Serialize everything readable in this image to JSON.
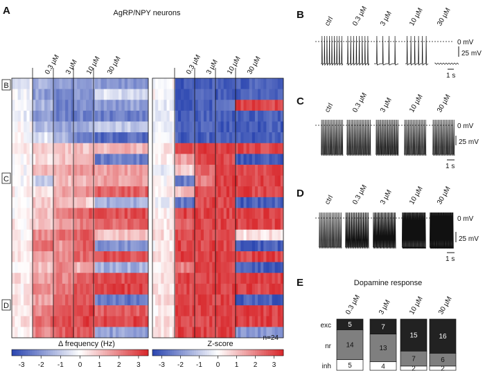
{
  "figure": {
    "panel_A": {
      "letter": "A",
      "title": "AgRP/NPY neurons",
      "row_markers": [
        "B",
        "C",
        "D"
      ],
      "concentration_labels": [
        "0.3 µM",
        "3 µM",
        "10 µM",
        "30 µM"
      ],
      "left_colorbar_label": "Δ frequency (Hz)",
      "right_colorbar_label": "Z-score",
      "colorbar_ticks": [
        "-3",
        "-2",
        "-1",
        "0",
        "1",
        "2",
        "3"
      ],
      "n_label": "n=24",
      "colors": {
        "low": "#2a45b0",
        "mid": "#ffffff",
        "high": "#d8262a"
      }
    },
    "panel_traces": [
      {
        "letter": "B",
        "labels": [
          "ctrl",
          "0.3 µM",
          "3 µM",
          "10 µM",
          "30 µM"
        ],
        "mv0": "0 mV",
        "mv25": "25 mV",
        "t1": "1 s"
      },
      {
        "letter": "C",
        "labels": [
          "ctrl",
          "0.3 µM",
          "3 µM",
          "10 µM",
          "30 µM"
        ],
        "mv0": "0 mV",
        "mv25": "25 mV",
        "t1": "1 s"
      },
      {
        "letter": "D",
        "labels": [
          "ctrl",
          "0.3 µM",
          "3 µM",
          "10 µM",
          "30 µM"
        ],
        "mv0": "0 mV",
        "mv25": "25 mV",
        "t1": "1 s"
      }
    ],
    "panel_E": {
      "letter": "E",
      "title": "Dopamine response",
      "row_labels": [
        "exc",
        "nr",
        "inh"
      ]
    }
  },
  "chart_data": [
    {
      "type": "heatmap",
      "title": "AgRP/NPY neurons",
      "xlabel": "",
      "ylabel": "",
      "colorbar_label": "Δ frequency (Hz)",
      "colorbar_range": [
        -3.5,
        3.5
      ],
      "columns": [
        "ctrl",
        "0.3 µM",
        "3 µM",
        "10 µM",
        "30 µM"
      ],
      "row_values": [
        [
          -0.3,
          -1.5,
          -2.0,
          -1.8,
          -2.0
        ],
        [
          -0.2,
          -1.8,
          -2.2,
          -2.0,
          -0.6
        ],
        [
          0.0,
          -1.5,
          -2.5,
          -2.2,
          -1.8
        ],
        [
          -0.3,
          -2.0,
          -2.4,
          -2.3,
          -2.5
        ],
        [
          0.0,
          -1.2,
          -1.8,
          -1.5,
          -1.0
        ],
        [
          0.0,
          -0.5,
          -1.5,
          -2.2,
          -2.8
        ],
        [
          0.2,
          0.8,
          0.9,
          1.0,
          1.2
        ],
        [
          0.1,
          0.6,
          1.0,
          1.4,
          -2.5
        ],
        [
          0.0,
          1.0,
          1.5,
          1.8,
          1.5
        ],
        [
          0.0,
          -0.8,
          1.0,
          1.2,
          1.5
        ],
        [
          0.2,
          0.5,
          1.4,
          2.0,
          2.5
        ],
        [
          -0.2,
          0.8,
          1.2,
          0.8,
          -1.5
        ],
        [
          0.0,
          1.0,
          2.0,
          2.6,
          2.8
        ],
        [
          0.3,
          0.9,
          1.5,
          2.0,
          2.4
        ],
        [
          0.2,
          1.8,
          2.2,
          2.6,
          1.0
        ],
        [
          0.4,
          2.2,
          1.5,
          2.6,
          -2.0
        ],
        [
          0.3,
          1.5,
          2.0,
          2.4,
          2.8
        ],
        [
          0.1,
          1.0,
          2.0,
          1.2,
          -1.5
        ],
        [
          0.5,
          1.5,
          2.0,
          2.5,
          2.8
        ],
        [
          0.3,
          1.8,
          2.2,
          2.8,
          3.0
        ],
        [
          0.4,
          1.5,
          2.4,
          2.8,
          -2.5
        ],
        [
          0.2,
          2.0,
          2.5,
          3.0,
          2.6
        ],
        [
          0.5,
          2.5,
          2.8,
          3.0,
          3.0
        ],
        [
          0.3,
          2.0,
          2.6,
          2.5,
          -1.8
        ]
      ]
    },
    {
      "type": "heatmap",
      "title": "",
      "xlabel": "",
      "ylabel": "",
      "colorbar_label": "Z-score",
      "colorbar_range": [
        -3.5,
        3.5
      ],
      "columns": [
        "ctrl",
        "0.3 µM",
        "3 µM",
        "10 µM",
        "30 µM"
      ],
      "row_values": [
        [
          0.0,
          -3.0,
          -3.0,
          -3.0,
          -3.0
        ],
        [
          0.0,
          -3.0,
          -3.0,
          -3.0,
          -3.0
        ],
        [
          -0.3,
          -3.0,
          -3.0,
          -2.5,
          3.0
        ],
        [
          -0.3,
          -3.0,
          -3.0,
          -3.0,
          -3.0
        ],
        [
          -0.2,
          -3.0,
          -3.0,
          -3.0,
          -3.0
        ],
        [
          0.0,
          -3.0,
          -3.0,
          -3.0,
          -3.0
        ],
        [
          0.5,
          3.0,
          3.0,
          3.0,
          3.0
        ],
        [
          0.2,
          1.5,
          3.0,
          3.0,
          -3.0
        ],
        [
          -0.5,
          0.8,
          2.5,
          3.0,
          3.0
        ],
        [
          0.0,
          -2.5,
          2.0,
          3.0,
          3.0
        ],
        [
          0.3,
          1.0,
          3.0,
          3.0,
          3.0
        ],
        [
          -0.2,
          -2.5,
          3.0,
          3.0,
          -3.0
        ],
        [
          0.2,
          3.0,
          3.0,
          3.0,
          3.0
        ],
        [
          0.3,
          2.5,
          3.0,
          3.0,
          3.0
        ],
        [
          0.5,
          3.0,
          3.0,
          3.0,
          0.5
        ],
        [
          0.2,
          3.0,
          3.0,
          3.0,
          -3.0
        ],
        [
          0.5,
          3.0,
          3.0,
          3.0,
          3.0
        ],
        [
          0.3,
          2.0,
          3.0,
          3.0,
          -3.0
        ],
        [
          0.5,
          3.0,
          3.0,
          3.0,
          3.0
        ],
        [
          0.4,
          3.0,
          3.0,
          3.0,
          3.0
        ],
        [
          0.5,
          3.0,
          3.0,
          3.0,
          -3.0
        ],
        [
          0.3,
          3.0,
          3.0,
          3.0,
          3.0
        ],
        [
          0.5,
          3.0,
          3.0,
          3.0,
          3.0
        ],
        [
          0.5,
          3.0,
          3.0,
          3.0,
          -2.0
        ]
      ]
    },
    {
      "type": "bar",
      "title": "Dopamine response",
      "stacked": true,
      "categories": [
        "0.3 µM",
        "3 µM",
        "10 µM",
        "30 µM"
      ],
      "series": [
        {
          "name": "inh",
          "values": [
            5,
            4,
            2,
            2
          ],
          "color": "#ffffff"
        },
        {
          "name": "nr",
          "values": [
            14,
            13,
            7,
            6
          ],
          "color": "#7f7f7f"
        },
        {
          "name": "exc",
          "values": [
            5,
            7,
            15,
            16
          ],
          "color": "#222222"
        }
      ],
      "xlabel": "",
      "ylabel": ""
    }
  ]
}
